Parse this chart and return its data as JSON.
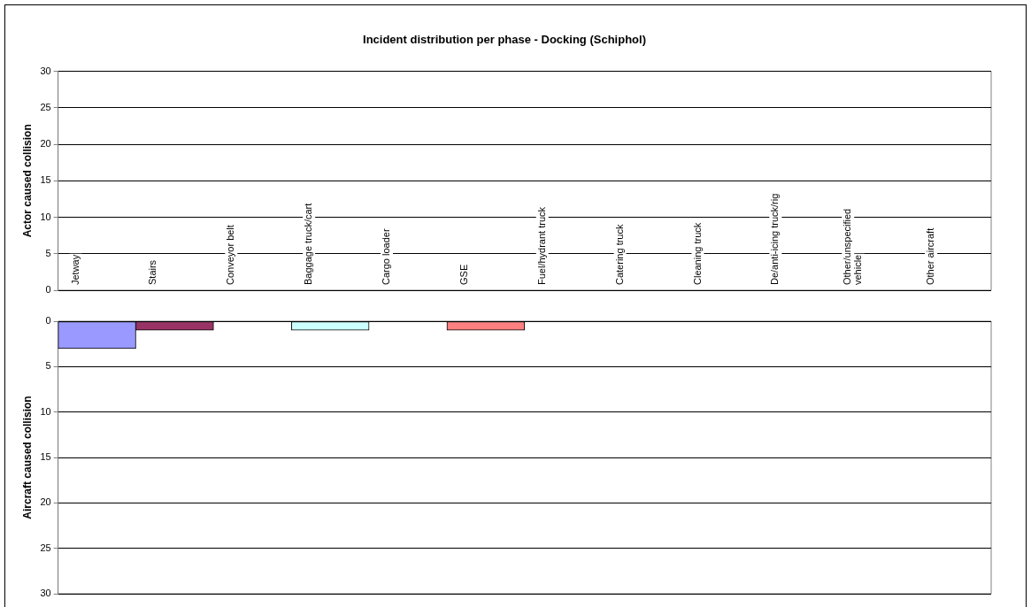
{
  "chart_data": [
    {
      "type": "bar",
      "title": "Incident distribution per phase - Docking (Schiphol)",
      "ylabel": "Actor caused collision",
      "categories": [
        "Jetway",
        "Stairs",
        "Conveyor belt",
        "Baggage truck/cart",
        "Cargo loader",
        "GSE",
        "Fuel/hydrant truck",
        "Catering truck",
        "Cleaning truck",
        "De/anti-icing truck/rig",
        "Other/unspecified vehicle",
        "Other aircraft"
      ],
      "values": [
        0,
        0,
        0,
        0,
        0,
        0,
        0,
        0,
        0,
        0,
        0,
        0
      ],
      "ylim": [
        0,
        30
      ],
      "yticks": [
        0,
        5,
        10,
        15,
        20,
        25,
        30
      ],
      "grid": "y",
      "legend": false
    },
    {
      "type": "bar",
      "ylabel": "Aircraft caused collision",
      "categories": [
        null,
        null,
        null,
        null,
        null,
        null,
        null,
        null,
        null,
        null,
        null,
        null
      ],
      "values": [
        3,
        1,
        0,
        1,
        0,
        1,
        0,
        0,
        0,
        0,
        0,
        0
      ],
      "colors": [
        "#9999ff",
        "#993366",
        "#ffffcc",
        "#ccffff",
        "#660066",
        "#ff8080",
        "#0066cc",
        "#ccccff",
        "#000080",
        "#ff00ff",
        "#ffff00",
        "#00ffff"
      ],
      "ylim": [
        30,
        0
      ],
      "yticks": [
        0,
        5,
        10,
        15,
        20,
        25,
        30
      ],
      "grid": "y",
      "legend": false,
      "tick_labels": "y"
    }
  ]
}
